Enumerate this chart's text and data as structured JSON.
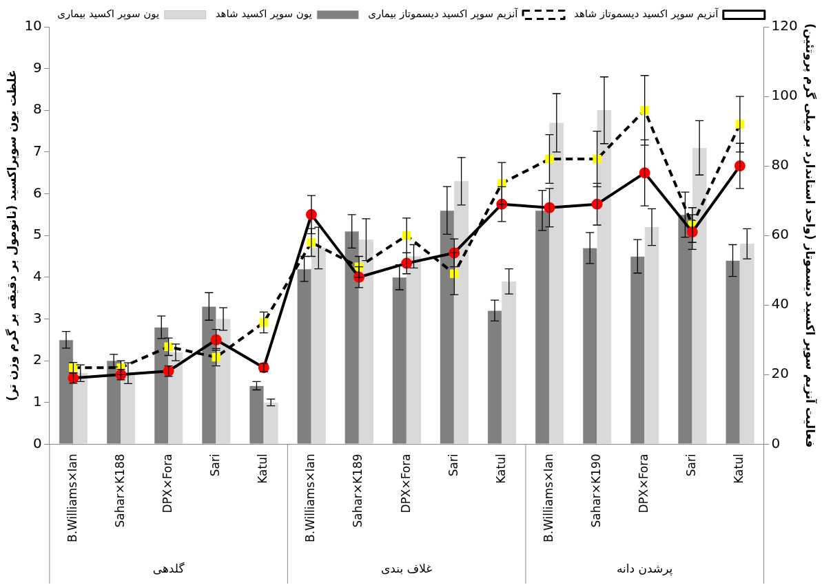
{
  "chart_data": {
    "type": "bar",
    "xlabel": null,
    "ylabel": "غلظت یون سوپراکسید (نانومول بر دقیقه بر گرم وزن تر)",
    "y2label": "فعالیت آنزیم سوپر اکسید دیسموتاز (واحد استاندارد بر میلی گرم پروتئین)",
    "categories": [
      "B.Williams×Ian",
      "Sahar×K188",
      "DPX×Fora",
      "Sari",
      "Katul",
      "B.Williams×Ian",
      "Sahar×K189",
      "DPX×Fora",
      "Sari",
      "Katul",
      "B.Williams×Ian",
      "Sahar×K190",
      "DPX×Fora",
      "Sari",
      "Katul"
    ],
    "annotations": [
      "گلدهی",
      "غلاف بندی",
      "پرشدن دانه"
    ],
    "series": [
      {
        "name": "یون سوپر اکسید شاهد",
        "color": "#808080",
        "values": [
          2.5,
          2.0,
          2.8,
          3.3,
          1.4,
          4.2,
          5.1,
          4.0,
          5.6,
          3.2,
          5.6,
          4.7,
          4.5,
          5.5,
          4.4
        ],
        "errors": [
          0.2,
          0.15,
          0.27,
          0.33,
          0.1,
          0.3,
          0.4,
          0.3,
          0.57,
          0.25,
          0.48,
          0.37,
          0.4,
          0.54,
          0.38
        ]
      },
      {
        "name": "یون سوپر اکسید بیماری",
        "color": "#d9d9d9",
        "values": [
          1.7,
          1.7,
          2.2,
          3.0,
          1.0,
          4.7,
          4.9,
          4.5,
          6.3,
          3.9,
          7.7,
          8.0,
          5.2,
          7.1,
          4.8
        ],
        "errors": [
          0.2,
          0.25,
          0.2,
          0.27,
          0.08,
          0.5,
          0.5,
          0.28,
          0.57,
          0.3,
          0.7,
          0.8,
          0.44,
          0.65,
          0.36
        ]
      },
      {
        "name": "آنزیم سوپر اکسید دیسموتاز شاهد",
        "type": "line",
        "axis": "y2",
        "color": "#000000",
        "line_style": "solid",
        "marker": "circle",
        "colors": [
          "#ff0000",
          "#ff0000",
          "#ff0000",
          "#ff0000",
          "#ff0000",
          "#ff0000",
          "#ff0000",
          "#ff0000",
          "#ff0000",
          "#ff0000",
          "#ff0000",
          "#ff0000",
          "#ff0000",
          "#ff0000",
          "#ff0000"
        ],
        "values": [
          19,
          20,
          21,
          30,
          22,
          66,
          48,
          52,
          55,
          69,
          68,
          69,
          78,
          61,
          80
        ],
        "errors": [
          1.5,
          1.5,
          1.5,
          3,
          1.2,
          5.5,
          3,
          3,
          4,
          5,
          5.5,
          6,
          9.5,
          5,
          6.5
        ]
      },
      {
        "name": "آنزیم سوپر اکسید دیسموتاز بیماری",
        "type": "line",
        "axis": "y2",
        "color": "#000000",
        "line_style": "dashed",
        "marker": "square",
        "colors": [
          "#ffff00",
          "#ffff00",
          "#ffff00",
          "#ffff00",
          "#ffff00",
          "#ffff00",
          "#ffff00",
          "#ffff00",
          "#ffff00",
          "#ffff00",
          "#ffff00",
          "#ffff00",
          "#ffff00",
          "#ffff00",
          "#ffff00"
        ],
        "values": [
          22,
          22,
          28,
          25,
          35,
          58,
          51,
          60,
          49,
          75,
          82,
          82,
          96,
          63,
          92
        ],
        "errors": [
          1.5,
          2,
          2.5,
          2.5,
          3,
          4,
          3,
          5,
          6,
          6,
          7,
          8,
          10,
          5,
          8
        ]
      }
    ],
    "ylim": [
      0,
      10
    ],
    "yticks": [
      0,
      1,
      2,
      3,
      4,
      5,
      6,
      7,
      8,
      9,
      10
    ],
    "y2lim": [
      0,
      120
    ],
    "y2ticks": [
      0,
      20,
      40,
      60,
      80,
      100,
      120
    ],
    "grid": false,
    "legend": "top"
  }
}
